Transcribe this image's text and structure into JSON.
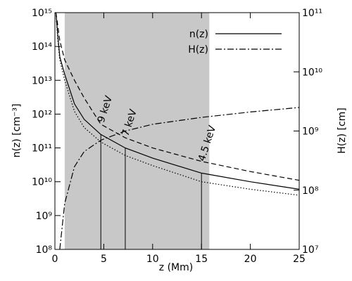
{
  "chart_data": {
    "type": "line",
    "xlabel": "z (Mm)",
    "ylabel": "n(z) [cm⁻³]",
    "y2label": "H(z) [cm]",
    "xlim": [
      0,
      25
    ],
    "xticks": [
      0,
      5,
      10,
      15,
      20,
      25
    ],
    "ylim": [
      100000000.0,
      1000000000000000.0
    ],
    "ylog": true,
    "yticks": [
      {
        "value": 100000000.0,
        "label": "10⁸"
      },
      {
        "value": 1000000000.0,
        "label": "10⁹"
      },
      {
        "value": 10000000000.0,
        "label": "10¹⁰"
      },
      {
        "value": 100000000000.0,
        "label": "10¹¹"
      },
      {
        "value": 1000000000000.0,
        "label": "10¹²"
      },
      {
        "value": 10000000000000.0,
        "label": "10¹³"
      },
      {
        "value": 100000000000000.0,
        "label": "10¹⁴"
      },
      {
        "value": 1000000000000000.0,
        "label": "10¹⁵"
      }
    ],
    "y2lim": [
      10000000.0,
      100000000000.0
    ],
    "y2log": true,
    "y2ticks": [
      {
        "value": 10000000.0,
        "label": "10⁷"
      },
      {
        "value": 100000000.0,
        "label": "10⁸"
      },
      {
        "value": 1000000000.0,
        "label": "10⁹"
      },
      {
        "value": 10000000000.0,
        "label": "10¹⁰"
      },
      {
        "value": 100000000000.0,
        "label": "10¹¹"
      }
    ],
    "shade": [
      1,
      15.8
    ],
    "shade_color": "#c8c8c8",
    "x": [
      0.1,
      0.3,
      0.5,
      1,
      2,
      3,
      4.7,
      7.2,
      10,
      15,
      20,
      25
    ],
    "series": [
      {
        "name": "n(z)",
        "color": "#000000",
        "style": "solid",
        "values": [
          1000000000000000.0,
          200000000000000.0,
          50000000000000.0,
          15000000000000.0,
          2000000000000.0,
          700000000000.0,
          250000000000.0,
          100000000000.0,
          50000000000.0,
          18000000000.0,
          10000000000.0,
          6000000000.0
        ]
      },
      {
        "color": "#000000",
        "style": "dashed",
        "values": [
          1000000000000000.0,
          400000000000000.0,
          150000000000000.0,
          40000000000000.0,
          10000000000000.0,
          3000000000000.0,
          500000000000.0,
          200000000000.0,
          100000000000.0,
          40000000000.0,
          20000000000.0,
          11000000000.0
        ]
      },
      {
        "color": "#000000",
        "style": "dotted",
        "values": [
          1000000000000000.0,
          150000000000000.0,
          40000000000000.0,
          10000000000000.0,
          1200000000000.0,
          400000000000.0,
          150000000000.0,
          60000000000.0,
          30000000000.0,
          10000000000.0,
          6000000000.0,
          4000000000.0
        ]
      },
      {
        "name": "H(z)",
        "color": "#000000",
        "style": "dashdot",
        "axis": "y2",
        "values": [
          null,
          null,
          10000000.0,
          60000000.0,
          250000000.0,
          450000000.0,
          700000000.0,
          1000000000.0,
          1300000000.0,
          1700000000.0,
          2100000000.0,
          2500000000.0
        ]
      }
    ],
    "annotations": [
      {
        "text": "9 keV",
        "x": 4.7,
        "y": 250000000000.0
      },
      {
        "text": "7 keV",
        "x": 7.2,
        "y": 100000000000.0
      },
      {
        "text": "4.5 keV",
        "x": 15,
        "y": 18000000000.0
      }
    ],
    "legend": "upper right"
  }
}
